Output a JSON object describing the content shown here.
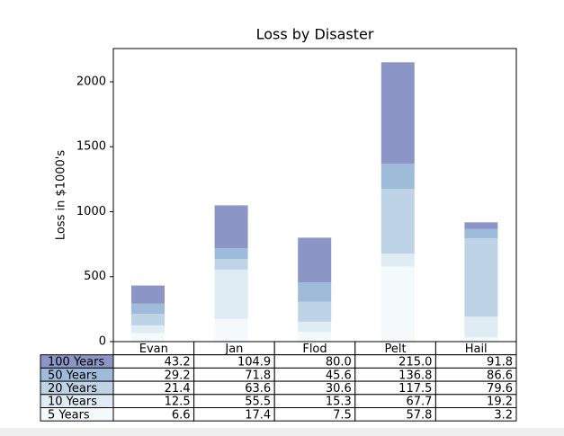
{
  "chart_data": {
    "type": "stacked_bar",
    "title": "Loss by Disaster",
    "y_label": "Loss in $1000's",
    "categories": [
      "Evan",
      "Jan",
      "Flod",
      "Pelt",
      "Hail"
    ],
    "series": [
      {
        "name": "5 Years",
        "color": "#f4fafc",
        "values": [
          66,
          174,
          75,
          578,
          32
        ]
      },
      {
        "name": "10 Years",
        "color": "#e0ecf4",
        "values": [
          59,
          381,
          78,
          99,
          160
        ]
      },
      {
        "name": "20 Years",
        "color": "#bfd3e6",
        "values": [
          89,
          81,
          153,
          498,
          604
        ]
      },
      {
        "name": "50 Years",
        "color": "#9ebcda",
        "values": [
          78,
          82,
          150,
          193,
          70
        ]
      },
      {
        "name": "100 Years",
        "color": "#8c96c6",
        "values": [
          140,
          331,
          344,
          782,
          52
        ]
      }
    ],
    "ylim": [
      0,
      2256
    ],
    "yticks": [
      0,
      500,
      1000,
      1500,
      2000
    ],
    "cell_text": [
      [
        "43.2",
        "104.9",
        "80.0",
        "215.0",
        "91.8"
      ],
      [
        "29.2",
        "71.8",
        "45.6",
        "136.8",
        "86.6"
      ],
      [
        "21.4",
        "63.6",
        "30.6",
        "117.5",
        "79.6"
      ],
      [
        "12.5",
        "55.5",
        "15.3",
        "67.7",
        "19.2"
      ],
      [
        "6.6",
        "17.4",
        "7.5",
        "57.8",
        "3.2"
      ]
    ]
  }
}
